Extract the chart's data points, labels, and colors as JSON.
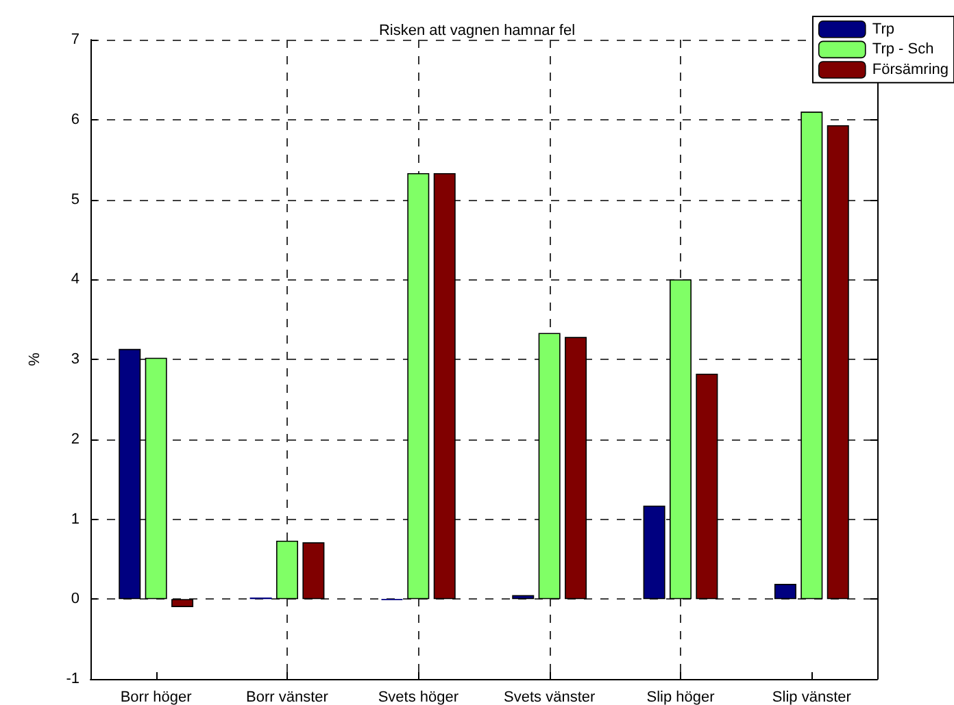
{
  "chart_data": {
    "type": "bar",
    "title": "Risken att vagnen hamnar fel",
    "ylabel": "%",
    "categories": [
      "Borr höger",
      "Borr vänster",
      "Svets höger",
      "Svets vänster",
      "Slip höger",
      "Slip vänster"
    ],
    "series": [
      {
        "name": "Trp",
        "color": "#000080",
        "values": [
          3.13,
          0.02,
          -0.01,
          0.05,
          1.17,
          0.19
        ]
      },
      {
        "name": "Trp - Sch",
        "color": "#80ff66",
        "values": [
          3.02,
          0.73,
          5.33,
          3.33,
          4.0,
          6.1
        ]
      },
      {
        "name": "Försämring",
        "color": "#800000",
        "values": [
          -0.1,
          0.71,
          5.33,
          3.28,
          2.82,
          5.93
        ]
      }
    ],
    "ylim": [
      -1,
      7
    ],
    "yticks": [
      -1,
      0,
      1,
      2,
      3,
      4,
      5,
      6,
      7
    ],
    "grid": true,
    "legend": "top right"
  }
}
